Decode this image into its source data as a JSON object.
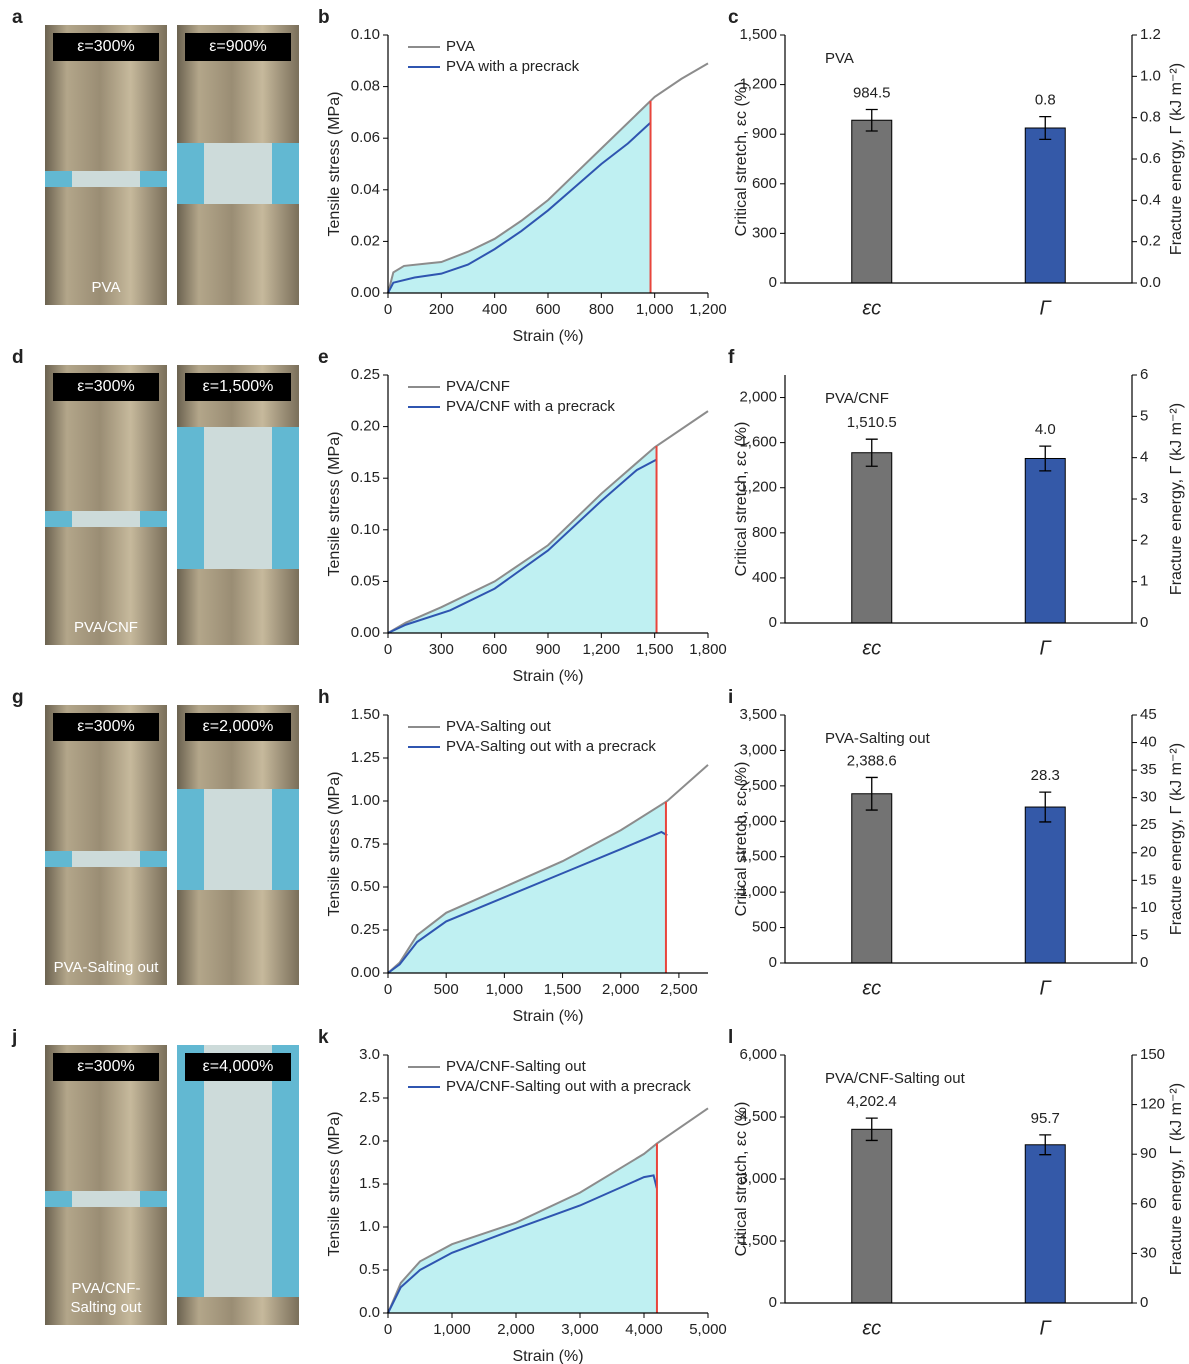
{
  "photo_panels": [
    {
      "label": "a",
      "strains": [
        "ε=300%",
        "ε=900%"
      ],
      "material": "PVA"
    },
    {
      "label": "d",
      "strains": [
        "ε=300%",
        "ε=1,500%"
      ],
      "material": "PVA/CNF"
    },
    {
      "label": "g",
      "strains": [
        "ε=300%",
        "ε=2,000%"
      ],
      "material": "PVA-Salting out"
    },
    {
      "label": "j",
      "strains": [
        "ε=300%",
        "ε=4,000%"
      ],
      "material": "PVA/CNF-Salting out"
    }
  ],
  "chart_data": [
    {
      "type": "line",
      "panel": "b",
      "x_label": "Strain (%)",
      "y_label": "Tensile stress (MPa)",
      "xlim": [
        0,
        1200
      ],
      "xticks": [
        0,
        200,
        400,
        600,
        800,
        {
          "value": 1000,
          "label": "1,000"
        },
        {
          "value": 1200,
          "label": "1,200"
        }
      ],
      "ylim": [
        0,
        0.1
      ],
      "yticks": [
        {
          "value": 0,
          "label": "0.00"
        },
        {
          "value": 0.02,
          "label": "0.02"
        },
        {
          "value": 0.04,
          "label": "0.04"
        },
        {
          "value": 0.06,
          "label": "0.06"
        },
        {
          "value": 0.08,
          "label": "0.08"
        },
        {
          "value": 0.1,
          "label": "0.10"
        }
      ],
      "fracture_x": 984.5,
      "fill_color": "#bff0f2",
      "fracture_color": "#e8453c",
      "series": [
        {
          "name": "PVA",
          "color": "#8c8c8c",
          "x": [
            0,
            20,
            60,
            150,
            200,
            300,
            400,
            500,
            600,
            700,
            800,
            900,
            1000,
            1100,
            1200
          ],
          "values": [
            0,
            0.008,
            0.0105,
            0.0115,
            0.012,
            0.016,
            0.021,
            0.028,
            0.036,
            0.046,
            0.056,
            0.066,
            0.076,
            0.083,
            0.089
          ]
        },
        {
          "name": "PVA with a precrack",
          "color": "#2f55b0",
          "x": [
            0,
            20,
            100,
            200,
            300,
            400,
            500,
            600,
            700,
            800,
            900,
            984
          ],
          "values": [
            0,
            0.004,
            0.006,
            0.0075,
            0.011,
            0.017,
            0.024,
            0.032,
            0.041,
            0.05,
            0.058,
            0.066
          ]
        }
      ]
    },
    {
      "type": "bar",
      "panel": "c",
      "annotation": "PVA",
      "y_label": "Critical stretch, εc (%)",
      "y2_label": "Fracture energy, Γ (kJ m⁻²)",
      "categories": [
        "εc",
        "Γ"
      ],
      "ylim": [
        0,
        1500
      ],
      "yticks": [
        0,
        300,
        600,
        900,
        {
          "value": 1200,
          "label": "1,200"
        },
        {
          "value": 1500,
          "label": "1,500"
        }
      ],
      "y2lim": [
        0,
        1.2
      ],
      "y2ticks": [
        {
          "value": 0,
          "label": "0.0"
        },
        {
          "value": 0.2,
          "label": "0.2"
        },
        {
          "value": 0.4,
          "label": "0.4"
        },
        {
          "value": 0.6,
          "label": "0.6"
        },
        {
          "value": 0.8,
          "label": "0.8"
        },
        {
          "value": 1,
          "label": "1.0"
        },
        {
          "value": 1.2,
          "label": "1.2"
        }
      ],
      "series": [
        {
          "color": "#737373",
          "values": [
            984.5,
            null
          ],
          "errors": [
            65,
            null
          ],
          "value_labels": [
            "984.5",
            null
          ]
        },
        {
          "axis": "y2",
          "color": "#3459a8",
          "values": [
            null,
            0.75
          ],
          "errors": [
            null,
            0.055
          ],
          "value_labels": [
            null,
            "0.8"
          ]
        }
      ]
    },
    {
      "type": "line",
      "panel": "e",
      "x_label": "Strain (%)",
      "y_label": "Tensile stress (MPa)",
      "xlim": [
        0,
        1800
      ],
      "xticks": [
        0,
        300,
        600,
        900,
        {
          "value": 1200,
          "label": "1,200"
        },
        {
          "value": 1500,
          "label": "1,500"
        },
        {
          "value": 1800,
          "label": "1,800"
        }
      ],
      "ylim": [
        0,
        0.25
      ],
      "yticks": [
        {
          "value": 0,
          "label": "0.00"
        },
        {
          "value": 0.05,
          "label": "0.05"
        },
        {
          "value": 0.1,
          "label": "0.10"
        },
        {
          "value": 0.15,
          "label": "0.15"
        },
        {
          "value": 0.2,
          "label": "0.20"
        },
        {
          "value": 0.25,
          "label": "0.25"
        }
      ],
      "fracture_x": 1510.5,
      "fill_color": "#bff0f2",
      "fracture_color": "#e8453c",
      "series": [
        {
          "name": "PVA/CNF",
          "color": "#8c8c8c",
          "x": [
            0,
            100,
            300,
            600,
            900,
            1200,
            1500,
            1800
          ],
          "values": [
            0,
            0.01,
            0.025,
            0.05,
            0.085,
            0.135,
            0.18,
            0.215
          ]
        },
        {
          "name": "PVA/CNF with a precrack",
          "color": "#2f55b0",
          "x": [
            0,
            100,
            350,
            600,
            900,
            1200,
            1400,
            1510
          ],
          "values": [
            0,
            0.008,
            0.022,
            0.043,
            0.08,
            0.128,
            0.158,
            0.168
          ]
        }
      ]
    },
    {
      "type": "bar",
      "panel": "f",
      "annotation": "PVA/CNF",
      "y_label": "Critical stretch, εc (%)",
      "y2_label": "Fracture energy, Γ (kJ m⁻²)",
      "categories": [
        "εc",
        "Γ"
      ],
      "ylim": [
        0,
        2200
      ],
      "yticks": [
        0,
        400,
        800,
        {
          "value": 1200,
          "label": "1,200"
        },
        {
          "value": 1600,
          "label": "1,600"
        },
        {
          "value": 2000,
          "label": "2,000"
        }
      ],
      "y2lim": [
        0,
        6
      ],
      "y2ticks": [
        0,
        1,
        2,
        3,
        4,
        5,
        6
      ],
      "series": [
        {
          "color": "#737373",
          "values": [
            1510.5,
            null
          ],
          "errors": [
            120,
            null
          ],
          "value_labels": [
            "1,510.5",
            null
          ]
        },
        {
          "axis": "y2",
          "color": "#3459a8",
          "values": [
            null,
            3.98
          ],
          "errors": [
            null,
            0.3
          ],
          "value_labels": [
            null,
            "4.0"
          ]
        }
      ]
    },
    {
      "type": "line",
      "panel": "h",
      "x_label": "Strain (%)",
      "y_label": "Tensile stress (MPa)",
      "xlim": [
        0,
        2750
      ],
      "xticks": [
        0,
        500,
        {
          "value": 1000,
          "label": "1,000"
        },
        {
          "value": 1500,
          "label": "1,500"
        },
        {
          "value": 2000,
          "label": "2,000"
        },
        {
          "value": 2500,
          "label": "2,500"
        }
      ],
      "ylim": [
        0,
        1.5
      ],
      "yticks": [
        {
          "value": 0,
          "label": "0.00"
        },
        {
          "value": 0.25,
          "label": "0.25"
        },
        {
          "value": 0.5,
          "label": "0.50"
        },
        {
          "value": 0.75,
          "label": "0.75"
        },
        {
          "value": 1,
          "label": "1.00"
        },
        {
          "value": 1.25,
          "label": "1.25"
        },
        {
          "value": 1.5,
          "label": "1.50"
        }
      ],
      "fracture_x": 2388.6,
      "fill_color": "#bff0f2",
      "fracture_color": "#e8453c",
      "series": [
        {
          "name": "PVA-Salting out",
          "color": "#8c8c8c",
          "x": [
            0,
            100,
            250,
            500,
            1000,
            1500,
            2000,
            2400,
            2750
          ],
          "values": [
            0,
            0.06,
            0.22,
            0.35,
            0.5,
            0.65,
            0.83,
            1.0,
            1.21
          ]
        },
        {
          "name": "PVA-Salting out with a precrack",
          "color": "#2f55b0",
          "x": [
            0,
            100,
            250,
            500,
            1000,
            1500,
            2000,
            2350,
            2400
          ],
          "values": [
            0,
            0.05,
            0.18,
            0.3,
            0.44,
            0.58,
            0.72,
            0.82,
            0.8
          ]
        }
      ]
    },
    {
      "type": "bar",
      "panel": "i",
      "annotation": "PVA-Salting out",
      "y_label": "Critical stretch, εc (%)",
      "y2_label": "Fracture energy, Γ (kJ m⁻²)",
      "categories": [
        "εc",
        "Γ"
      ],
      "ylim": [
        0,
        3500
      ],
      "yticks": [
        0,
        500,
        {
          "value": 1000,
          "label": "1,000"
        },
        {
          "value": 1500,
          "label": "1,500"
        },
        {
          "value": 2000,
          "label": "2,000"
        },
        {
          "value": 2500,
          "label": "2,500"
        },
        {
          "value": 3000,
          "label": "3,000"
        },
        {
          "value": 3500,
          "label": "3,500"
        }
      ],
      "y2lim": [
        0,
        45
      ],
      "y2ticks": [
        0,
        5,
        10,
        15,
        20,
        25,
        30,
        35,
        40,
        45
      ],
      "series": [
        {
          "color": "#737373",
          "values": [
            2388.6,
            null
          ],
          "errors": [
            230,
            null
          ],
          "value_labels": [
            "2,388.6",
            null
          ]
        },
        {
          "axis": "y2",
          "color": "#3459a8",
          "values": [
            null,
            28.3
          ],
          "errors": [
            null,
            2.7
          ],
          "value_labels": [
            null,
            "28.3"
          ]
        }
      ]
    },
    {
      "type": "line",
      "panel": "k",
      "x_label": "Strain (%)",
      "y_label": "Tensile stress (MPa)",
      "xlim": [
        0,
        5000
      ],
      "xticks": [
        0,
        {
          "value": 1000,
          "label": "1,000"
        },
        {
          "value": 2000,
          "label": "2,000"
        },
        {
          "value": 3000,
          "label": "3,000"
        },
        {
          "value": 4000,
          "label": "4,000"
        },
        {
          "value": 5000,
          "label": "5,000"
        }
      ],
      "ylim": [
        0,
        3
      ],
      "yticks": [
        {
          "value": 0,
          "label": "0.0"
        },
        {
          "value": 0.5,
          "label": "0.5"
        },
        {
          "value": 1,
          "label": "1.0"
        },
        {
          "value": 1.5,
          "label": "1.5"
        },
        {
          "value": 2,
          "label": "2.0"
        },
        {
          "value": 2.5,
          "label": "2.5"
        },
        {
          "value": 3,
          "label": "3.0"
        }
      ],
      "fracture_x": 4202.4,
      "fill_color": "#bff0f2",
      "fracture_color": "#e8453c",
      "series": [
        {
          "name": "PVA/CNF-Salting out",
          "color": "#8c8c8c",
          "x": [
            0,
            200,
            500,
            1000,
            2000,
            3000,
            4000,
            4200,
            5000
          ],
          "values": [
            0,
            0.35,
            0.6,
            0.8,
            1.05,
            1.4,
            1.85,
            1.97,
            2.38
          ]
        },
        {
          "name": "PVA/CNF-Salting out with a precrack",
          "color": "#2f55b0",
          "x": [
            0,
            200,
            500,
            1000,
            2000,
            3000,
            4000,
            4150,
            4200
          ],
          "values": [
            0,
            0.3,
            0.5,
            0.7,
            0.98,
            1.25,
            1.58,
            1.6,
            1.45
          ]
        }
      ]
    },
    {
      "type": "bar",
      "panel": "l",
      "annotation": "PVA/CNF-Salting out",
      "y_label": "Critical stretch, εc (%)",
      "y2_label": "Fracture energy, Γ (kJ m⁻²)",
      "categories": [
        "εc",
        "Γ"
      ],
      "ylim": [
        0,
        6000
      ],
      "yticks": [
        0,
        {
          "value": 1500,
          "label": "1,500"
        },
        {
          "value": 3000,
          "label": "3,000"
        },
        {
          "value": 4500,
          "label": "4,500"
        },
        {
          "value": 6000,
          "label": "6,000"
        }
      ],
      "y2lim": [
        0,
        150
      ],
      "y2ticks": [
        0,
        30,
        60,
        90,
        120,
        150
      ],
      "series": [
        {
          "color": "#737373",
          "values": [
            4202.4,
            null
          ],
          "errors": [
            270,
            null
          ],
          "value_labels": [
            "4,202.4",
            null
          ]
        },
        {
          "axis": "y2",
          "color": "#3459a8",
          "values": [
            null,
            95.7
          ],
          "errors": [
            null,
            6
          ],
          "value_labels": [
            null,
            "95.7"
          ]
        }
      ]
    }
  ]
}
